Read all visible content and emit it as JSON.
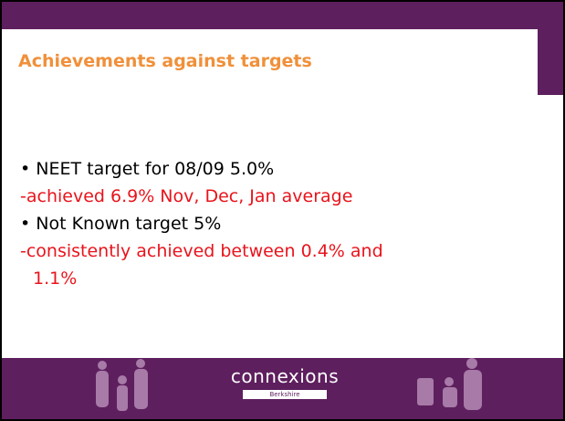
{
  "title": "Achievements against targets",
  "items": [
    {
      "lines": [
        "• NEET target for 08/09 5.0%"
      ],
      "color": "black"
    },
    {
      "lines": [
        "-achieved 6.9% Nov, Dec, Jan average"
      ],
      "color": "red"
    },
    {
      "lines": [
        "• Not Known target 5%"
      ],
      "color": "black"
    },
    {
      "lines": [
        "-consistently achieved between 0.4% and",
        "1.1%"
      ],
      "color": "red"
    }
  ],
  "logo": {
    "name": "connexions",
    "region": "Berkshire"
  }
}
